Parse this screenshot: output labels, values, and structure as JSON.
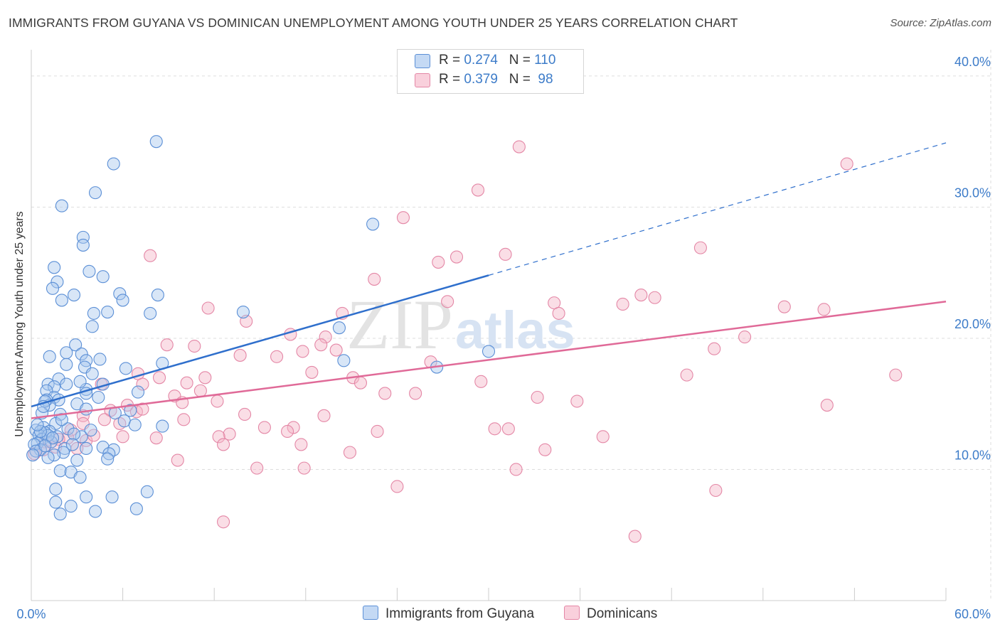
{
  "title": "IMMIGRANTS FROM GUYANA VS DOMINICAN UNEMPLOYMENT AMONG YOUTH UNDER 25 YEARS CORRELATION CHART",
  "source": "Source: ZipAtlas.com",
  "watermark": {
    "zip": "ZIP",
    "atlas": "atlas"
  },
  "legend": {
    "rows": [
      {
        "r_label": "R = ",
        "r_value": "0.274",
        "n_label": "N = ",
        "n_value": "110",
        "color": "#a9c8ee"
      },
      {
        "r_label": "R = ",
        "r_value": "0.379",
        "n_label": "N = ",
        "n_value": " 98",
        "color": "#f5b6c8"
      }
    ]
  },
  "bottom_legend": {
    "guyana": "Immigrants from Guyana",
    "dominicans": "Dominicans"
  },
  "colors": {
    "blue_fill": "#a9c8ee",
    "blue_stroke": "#5b8fd6",
    "blue_line": "#2f6fcc",
    "pink_fill": "#f5b6c8",
    "pink_stroke": "#e487a6",
    "pink_line": "#e06a98",
    "grid": "#dddddd"
  },
  "chart_data": {
    "type": "scatter",
    "title": "IMMIGRANTS FROM GUYANA VS DOMINICAN UNEMPLOYMENT AMONG YOUTH UNDER 25 YEARS CORRELATION CHART",
    "xlabel": "",
    "ylabel": "Unemployment Among Youth under 25 years",
    "xlim": [
      0,
      60
    ],
    "ylim": [
      0,
      42
    ],
    "x_ticks": [
      "0.0%",
      "60.0%"
    ],
    "y_ticks": [
      {
        "value": 10,
        "label": "10.0%"
      },
      {
        "value": 20,
        "label": "20.0%"
      },
      {
        "value": 30,
        "label": "30.0%"
      },
      {
        "value": 40,
        "label": "40.0%"
      }
    ],
    "series": [
      {
        "name": "Immigrants from Guyana",
        "R": 0.274,
        "N": 110,
        "trend": {
          "x0": 0,
          "y0": 14.8,
          "x1": 30,
          "y1": 24.8,
          "dash_to_x": 60,
          "dash_to_y": 34.9
        },
        "points": [
          [
            8.2,
            35.0
          ],
          [
            5.4,
            33.3
          ],
          [
            4.2,
            31.1
          ],
          [
            2.0,
            30.1
          ],
          [
            3.4,
            27.7
          ],
          [
            3.4,
            27.1
          ],
          [
            1.5,
            25.4
          ],
          [
            3.8,
            25.1
          ],
          [
            4.7,
            24.7
          ],
          [
            1.7,
            24.3
          ],
          [
            1.4,
            23.8
          ],
          [
            2.8,
            23.3
          ],
          [
            5.8,
            23.4
          ],
          [
            8.3,
            23.3
          ],
          [
            2.0,
            22.9
          ],
          [
            6.0,
            22.9
          ],
          [
            5.0,
            22.0
          ],
          [
            7.8,
            21.9
          ],
          [
            4.1,
            21.9
          ],
          [
            4.0,
            20.9
          ],
          [
            13.9,
            22.0
          ],
          [
            20.2,
            20.8
          ],
          [
            2.9,
            19.5
          ],
          [
            2.3,
            18.9
          ],
          [
            1.2,
            18.6
          ],
          [
            3.3,
            18.8
          ],
          [
            3.6,
            18.3
          ],
          [
            4.5,
            18.4
          ],
          [
            2.3,
            18.0
          ],
          [
            3.5,
            17.8
          ],
          [
            8.6,
            18.1
          ],
          [
            6.2,
            17.7
          ],
          [
            4.0,
            17.3
          ],
          [
            1.8,
            16.9
          ],
          [
            1.1,
            16.5
          ],
          [
            2.3,
            16.5
          ],
          [
            4.7,
            16.5
          ],
          [
            3.6,
            16.1
          ],
          [
            1.5,
            16.3
          ],
          [
            1.0,
            16.0
          ],
          [
            7.0,
            15.9
          ],
          [
            3.6,
            15.8
          ],
          [
            1.5,
            15.5
          ],
          [
            1.8,
            15.3
          ],
          [
            1.0,
            15.3
          ],
          [
            1.2,
            14.9
          ],
          [
            0.9,
            15.2
          ],
          [
            3.0,
            15.0
          ],
          [
            3.6,
            14.6
          ],
          [
            5.5,
            14.3
          ],
          [
            1.9,
            14.2
          ],
          [
            0.7,
            14.3
          ],
          [
            6.1,
            13.7
          ],
          [
            1.6,
            13.5
          ],
          [
            6.8,
            13.4
          ],
          [
            8.6,
            13.3
          ],
          [
            0.8,
            13.2
          ],
          [
            0.3,
            13.0
          ],
          [
            1.2,
            12.9
          ],
          [
            0.9,
            12.8
          ],
          [
            0.5,
            12.6
          ],
          [
            1.7,
            12.5
          ],
          [
            3.3,
            12.5
          ],
          [
            0.7,
            12.3
          ],
          [
            1.3,
            12.1
          ],
          [
            0.4,
            12.0
          ],
          [
            0.2,
            11.9
          ],
          [
            3.6,
            11.6
          ],
          [
            4.7,
            11.7
          ],
          [
            2.2,
            11.6
          ],
          [
            5.4,
            11.5
          ],
          [
            0.6,
            11.5
          ],
          [
            0.3,
            11.4
          ],
          [
            2.1,
            11.3
          ],
          [
            0.1,
            11.1
          ],
          [
            5.1,
            11.2
          ],
          [
            1.5,
            11.1
          ],
          [
            5.0,
            10.8
          ],
          [
            3.0,
            10.7
          ],
          [
            1.9,
            9.9
          ],
          [
            2.6,
            9.8
          ],
          [
            3.2,
            9.4
          ],
          [
            7.6,
            8.3
          ],
          [
            1.6,
            8.5
          ],
          [
            3.6,
            7.9
          ],
          [
            5.3,
            7.9
          ],
          [
            1.6,
            7.5
          ],
          [
            2.6,
            7.2
          ],
          [
            6.9,
            7.0
          ],
          [
            4.2,
            6.8
          ],
          [
            1.9,
            6.6
          ],
          [
            20.5,
            18.3
          ],
          [
            26.6,
            17.8
          ],
          [
            22.4,
            28.7
          ],
          [
            30.0,
            19.0
          ],
          [
            1.1,
            12.6
          ],
          [
            2.4,
            13.1
          ],
          [
            0.6,
            12.9
          ],
          [
            1.4,
            12.4
          ],
          [
            0.9,
            11.8
          ],
          [
            2.8,
            12.7
          ],
          [
            0.8,
            14.8
          ],
          [
            3.2,
            16.7
          ],
          [
            2.0,
            13.8
          ],
          [
            4.4,
            15.5
          ],
          [
            1.1,
            10.9
          ],
          [
            6.5,
            14.5
          ],
          [
            0.4,
            13.4
          ],
          [
            2.7,
            11.9
          ],
          [
            3.9,
            13.0
          ]
        ]
      },
      {
        "name": "Dominicans",
        "R": 0.379,
        "N": 98,
        "trend": {
          "x0": 0,
          "y0": 13.9,
          "x1": 60,
          "y1": 22.8
        },
        "points": [
          [
            32.0,
            34.6
          ],
          [
            53.5,
            33.3
          ],
          [
            29.3,
            31.3
          ],
          [
            24.4,
            29.2
          ],
          [
            43.9,
            26.9
          ],
          [
            7.8,
            26.3
          ],
          [
            31.1,
            26.4
          ],
          [
            26.7,
            25.8
          ],
          [
            27.9,
            26.2
          ],
          [
            22.5,
            24.5
          ],
          [
            40.0,
            23.3
          ],
          [
            40.9,
            23.1
          ],
          [
            27.3,
            22.8
          ],
          [
            34.3,
            22.7
          ],
          [
            38.8,
            22.6
          ],
          [
            49.4,
            22.4
          ],
          [
            52.0,
            22.2
          ],
          [
            11.6,
            22.3
          ],
          [
            20.4,
            21.9
          ],
          [
            34.6,
            21.9
          ],
          [
            14.1,
            21.3
          ],
          [
            17.0,
            20.3
          ],
          [
            19.3,
            20.1
          ],
          [
            46.8,
            20.1
          ],
          [
            8.9,
            19.5
          ],
          [
            10.7,
            19.4
          ],
          [
            19.0,
            19.5
          ],
          [
            20.0,
            19.1
          ],
          [
            17.8,
            19.0
          ],
          [
            13.7,
            18.7
          ],
          [
            16.1,
            18.6
          ],
          [
            44.8,
            19.2
          ],
          [
            7.0,
            17.3
          ],
          [
            8.4,
            17.0
          ],
          [
            11.4,
            17.0
          ],
          [
            18.4,
            17.4
          ],
          [
            21.1,
            17.0
          ],
          [
            43.0,
            17.2
          ],
          [
            56.7,
            17.2
          ],
          [
            29.5,
            16.7
          ],
          [
            10.2,
            16.6
          ],
          [
            21.6,
            16.6
          ],
          [
            7.3,
            16.5
          ],
          [
            11.1,
            16.0
          ],
          [
            4.6,
            16.5
          ],
          [
            23.2,
            15.8
          ],
          [
            25.2,
            15.8
          ],
          [
            9.4,
            15.6
          ],
          [
            33.2,
            15.5
          ],
          [
            35.8,
            15.2
          ],
          [
            12.2,
            15.2
          ],
          [
            6.3,
            14.9
          ],
          [
            6.9,
            14.4
          ],
          [
            5.2,
            14.5
          ],
          [
            3.4,
            14.1
          ],
          [
            19.2,
            14.1
          ],
          [
            52.2,
            14.9
          ],
          [
            10.0,
            13.8
          ],
          [
            3.4,
            13.5
          ],
          [
            5.8,
            13.5
          ],
          [
            4.8,
            13.8
          ],
          [
            15.3,
            13.2
          ],
          [
            17.2,
            13.2
          ],
          [
            16.8,
            12.9
          ],
          [
            13.0,
            12.7
          ],
          [
            30.4,
            13.1
          ],
          [
            31.3,
            13.1
          ],
          [
            22.7,
            12.9
          ],
          [
            12.3,
            12.5
          ],
          [
            6.0,
            12.5
          ],
          [
            2.4,
            12.4
          ],
          [
            8.2,
            12.4
          ],
          [
            1.8,
            12.3
          ],
          [
            0.9,
            12.1
          ],
          [
            3.6,
            12.2
          ],
          [
            12.6,
            11.9
          ],
          [
            1.6,
            11.7
          ],
          [
            17.7,
            11.9
          ],
          [
            37.5,
            12.5
          ],
          [
            33.7,
            11.5
          ],
          [
            3.0,
            11.6
          ],
          [
            20.9,
            11.3
          ],
          [
            0.8,
            11.5
          ],
          [
            0.2,
            11.2
          ],
          [
            9.6,
            10.7
          ],
          [
            14.8,
            10.1
          ],
          [
            17.9,
            10.1
          ],
          [
            31.8,
            10.0
          ],
          [
            24.0,
            8.7
          ],
          [
            44.9,
            8.4
          ],
          [
            12.6,
            6.0
          ],
          [
            39.6,
            4.9
          ],
          [
            2.6,
            13.0
          ],
          [
            4.1,
            12.6
          ],
          [
            7.3,
            14.6
          ],
          [
            14.0,
            14.2
          ],
          [
            9.9,
            15.1
          ],
          [
            26.2,
            18.2
          ]
        ]
      }
    ]
  }
}
